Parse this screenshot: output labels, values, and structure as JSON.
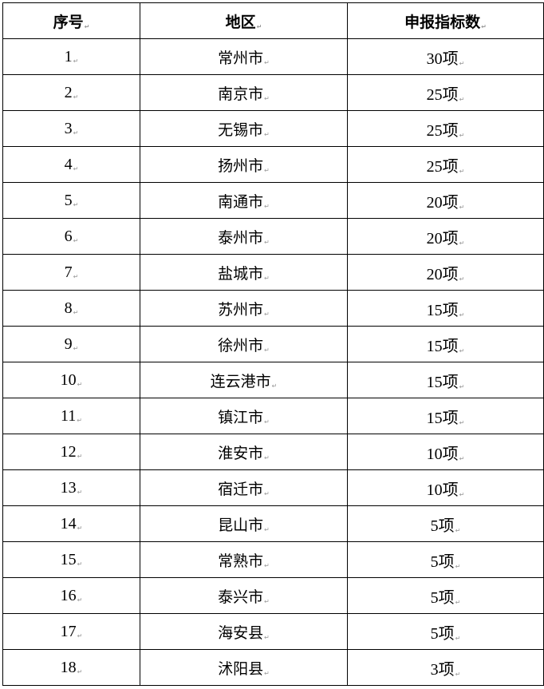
{
  "table": {
    "headers": [
      "序号",
      "地区",
      "申报指标数"
    ],
    "rows": [
      [
        "1",
        "常州市",
        "30项"
      ],
      [
        "2",
        "南京市",
        "25项"
      ],
      [
        "3",
        "无锡市",
        "25项"
      ],
      [
        "4",
        "扬州市",
        "25项"
      ],
      [
        "5",
        "南通市",
        "20项"
      ],
      [
        "6",
        "泰州市",
        "20项"
      ],
      [
        "7",
        "盐城市",
        "20项"
      ],
      [
        "8",
        "苏州市",
        "15项"
      ],
      [
        "9",
        "徐州市",
        "15项"
      ],
      [
        "10",
        "连云港市",
        "15项"
      ],
      [
        "11",
        "镇江市",
        "15项"
      ],
      [
        "12",
        "淮安市",
        "10项"
      ],
      [
        "13",
        "宿迁市",
        "10项"
      ],
      [
        "14",
        "昆山市",
        "5项"
      ],
      [
        "15",
        "常熟市",
        "5项"
      ],
      [
        "16",
        "泰兴市",
        "5项"
      ],
      [
        "17",
        "海安县",
        "5项"
      ],
      [
        "18",
        "沭阳县",
        "3项"
      ]
    ]
  }
}
